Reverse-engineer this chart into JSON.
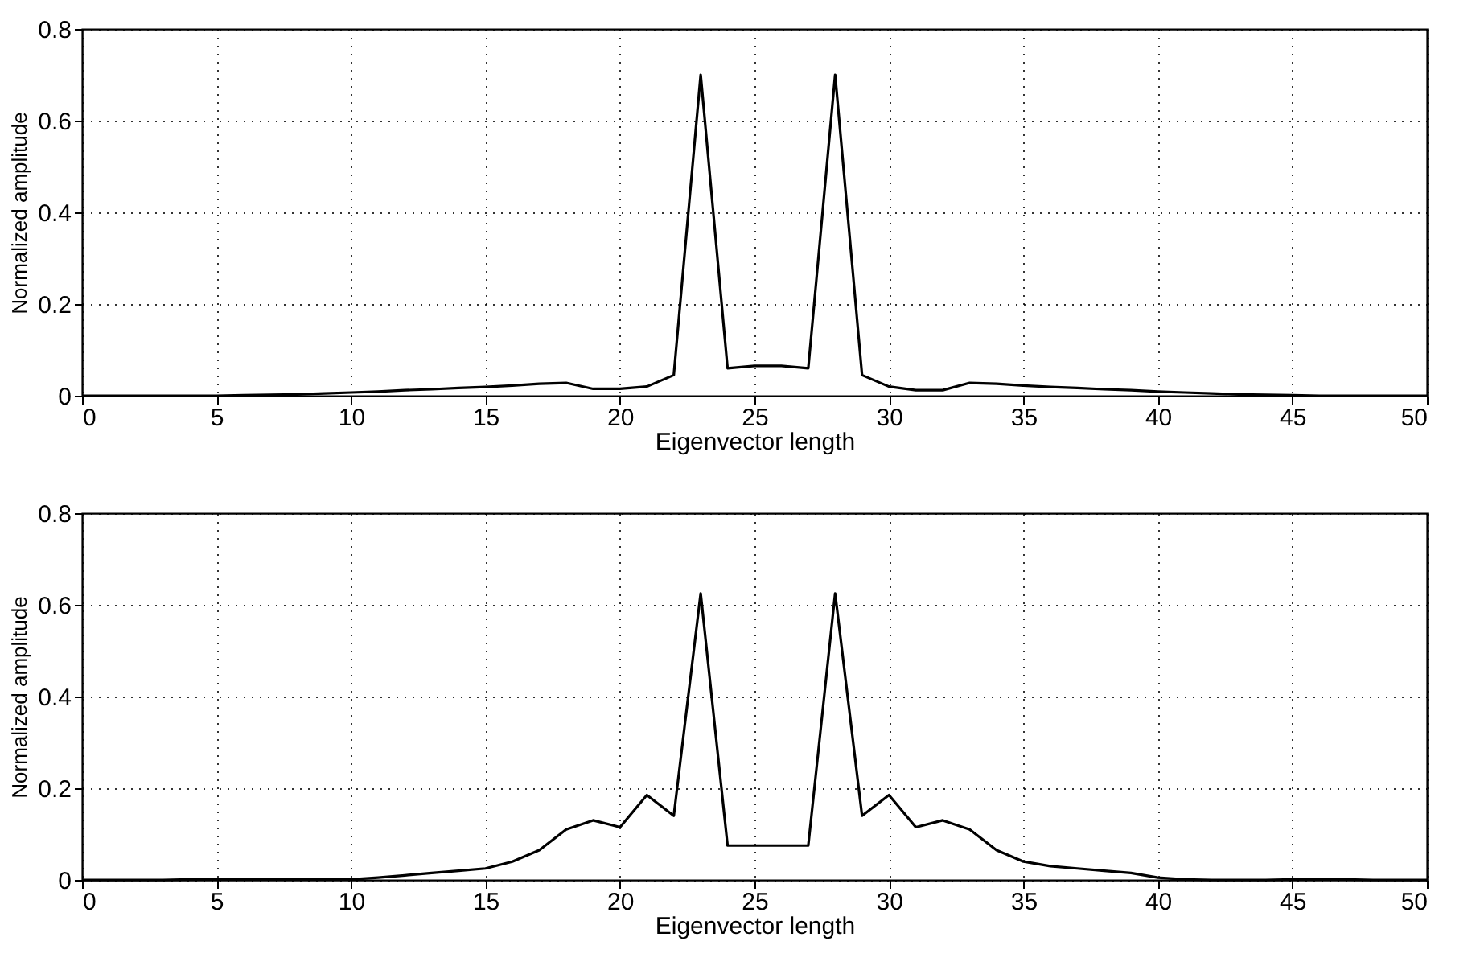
{
  "chart_data": [
    {
      "type": "line",
      "xlabel": "Eigenvector length",
      "ylabel": "Normalized amplitude",
      "xlim": [
        0,
        50
      ],
      "ylim": [
        0,
        0.8
      ],
      "xticks": [
        0,
        5,
        10,
        15,
        20,
        25,
        30,
        35,
        40,
        45,
        50
      ],
      "yticks": [
        0,
        0.2,
        0.4,
        0.6,
        0.8
      ],
      "grid": true,
      "line_style": "solid",
      "marker": "none",
      "x": [
        0,
        1,
        2,
        3,
        4,
        5,
        6,
        7,
        8,
        9,
        10,
        11,
        12,
        13,
        14,
        15,
        16,
        17,
        18,
        19,
        20,
        21,
        22,
        23,
        24,
        25,
        26,
        27,
        28,
        29,
        30,
        31,
        32,
        33,
        34,
        35,
        36,
        37,
        38,
        39,
        40,
        41,
        42,
        43,
        44,
        45,
        46,
        47,
        48,
        49,
        50
      ],
      "series": [
        {
          "color": "#000000",
          "values": [
            0,
            0,
            0,
            0,
            0,
            0,
            0.001,
            0.002,
            0.003,
            0.005,
            0.007,
            0.009,
            0.012,
            0.014,
            0.017,
            0.019,
            0.022,
            0.026,
            0.028,
            0.015,
            0.015,
            0.02,
            0.045,
            0.7,
            0.06,
            0.065,
            0.065,
            0.06,
            0.7,
            0.045,
            0.02,
            0.012,
            0.012,
            0.028,
            0.026,
            0.022,
            0.019,
            0.017,
            0.014,
            0.012,
            0.009,
            0.007,
            0.005,
            0.003,
            0.002,
            0.001,
            0,
            0,
            0,
            0,
            0
          ]
        }
      ]
    },
    {
      "type": "line",
      "xlabel": "Eigenvector length",
      "ylabel": "Normalized amplitude",
      "xlim": [
        0,
        50
      ],
      "ylim": [
        0,
        0.8
      ],
      "xticks": [
        0,
        5,
        10,
        15,
        20,
        25,
        30,
        35,
        40,
        45,
        50
      ],
      "yticks": [
        0,
        0.2,
        0.4,
        0.6,
        0.8
      ],
      "grid": true,
      "line_style": "solid",
      "marker": "none",
      "x": [
        0,
        1,
        2,
        3,
        4,
        5,
        6,
        7,
        8,
        9,
        10,
        11,
        12,
        13,
        14,
        15,
        16,
        17,
        18,
        19,
        20,
        21,
        22,
        23,
        24,
        25,
        26,
        27,
        28,
        29,
        30,
        31,
        32,
        33,
        34,
        35,
        36,
        37,
        38,
        39,
        40,
        41,
        42,
        43,
        44,
        45,
        46,
        47,
        48,
        49,
        50
      ],
      "series": [
        {
          "color": "#000000",
          "values": [
            0,
            0,
            0,
            0,
            0.001,
            0.001,
            0.002,
            0.002,
            0.001,
            0.001,
            0.001,
            0.005,
            0.01,
            0.015,
            0.02,
            0.025,
            0.04,
            0.065,
            0.11,
            0.13,
            0.115,
            0.185,
            0.14,
            0.625,
            0.075,
            0.075,
            0.075,
            0.075,
            0.625,
            0.14,
            0.185,
            0.115,
            0.13,
            0.11,
            0.065,
            0.04,
            0.03,
            0.025,
            0.02,
            0.015,
            0.005,
            0.001,
            0,
            0,
            0,
            0.001,
            0.001,
            0.001,
            0,
            0,
            0
          ]
        }
      ]
    }
  ]
}
